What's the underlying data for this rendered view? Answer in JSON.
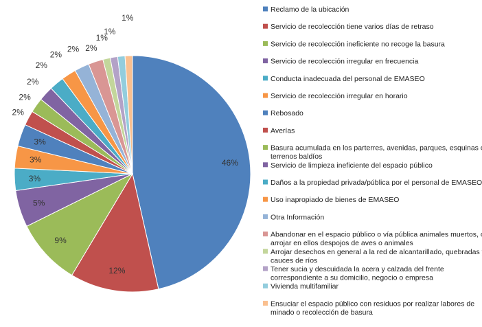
{
  "chart_data": {
    "type": "pie",
    "title": "",
    "legend_position": "right",
    "categories": [
      "Reclamo de la ubicación",
      "Servicio de recolección tiene varios días de retraso",
      "Servicio de recolección ineficiente no recoge la basura",
      "Servicio de recolección irregular en frecuencia",
      "Conducta inadecuada del personal de EMASEO",
      "Servicio de recolección irregular en horario",
      "Rebosado",
      "Averías",
      "Basura acumulada en los parterres, avenidas, parques, esquinas o terrenos baldíos",
      "Servicio de limpieza ineficiente del espacio público",
      "Daños a la propiedad privada/pública por el personal de EMASEO",
      "Uso inapropiado de bienes de EMASEO",
      "Otra Información",
      "Abandonar en el espacio público o vía pública animales muertos, o arrojar en ellos despojos de aves o animales",
      "Arrojar desechos en general a la red de alcantarillado, quebradas y cauces de ríos",
      "Tener sucia y descuidada la acera y calzada del frente correspondiente a su domicilio, negocio o empresa",
      "Vivienda multifamiliar",
      "Ensuciar el espacio público con residuos por realizar labores de minado o recolección de basura"
    ],
    "values": [
      46,
      12,
      9,
      5,
      3,
      3,
      3,
      2,
      2,
      2,
      2,
      2,
      2,
      2,
      1,
      1,
      1,
      1
    ],
    "labels": [
      "46%",
      "12%",
      "9%",
      "5%",
      "3%",
      "3%",
      "3%",
      "2%",
      "2%",
      "2%",
      "2%",
      "2%",
      "2%",
      "2%",
      "1%",
      "1%",
      "",
      "1%"
    ],
    "colors": [
      "#4F81BD",
      "#C0504D",
      "#9BBB59",
      "#8064A2",
      "#4BACC6",
      "#F79646",
      "#4F81BD",
      "#C0504D",
      "#9BBB59",
      "#8064A2",
      "#4BACC6",
      "#F79646",
      "#95B3D7",
      "#D99694",
      "#C3D69B",
      "#B3A2C7",
      "#93CDDD",
      "#FAC090"
    ]
  }
}
